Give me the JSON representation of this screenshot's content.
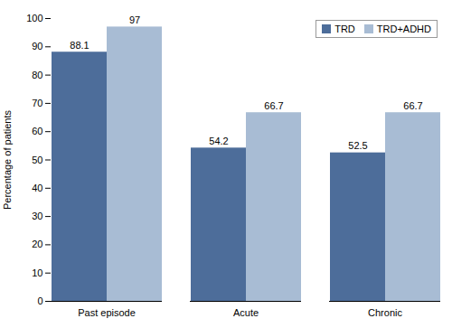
{
  "chart_data": {
    "type": "bar",
    "categories": [
      "Past episode",
      "Acute",
      "Chronic"
    ],
    "series": [
      {
        "name": "TRD",
        "color": "#4d6d9a",
        "values": [
          88.1,
          54.2,
          52.5
        ]
      },
      {
        "name": "TRD+ADHD",
        "color": "#a8bcd4",
        "values": [
          97,
          66.7,
          66.7
        ]
      }
    ],
    "ylabel": "Percentage of patients",
    "ylim": [
      0,
      100
    ],
    "yticks": [
      0,
      10,
      20,
      30,
      40,
      50,
      60,
      70,
      80,
      90,
      100
    ],
    "legend": "upper right",
    "data_labels": true,
    "grid": false
  }
}
